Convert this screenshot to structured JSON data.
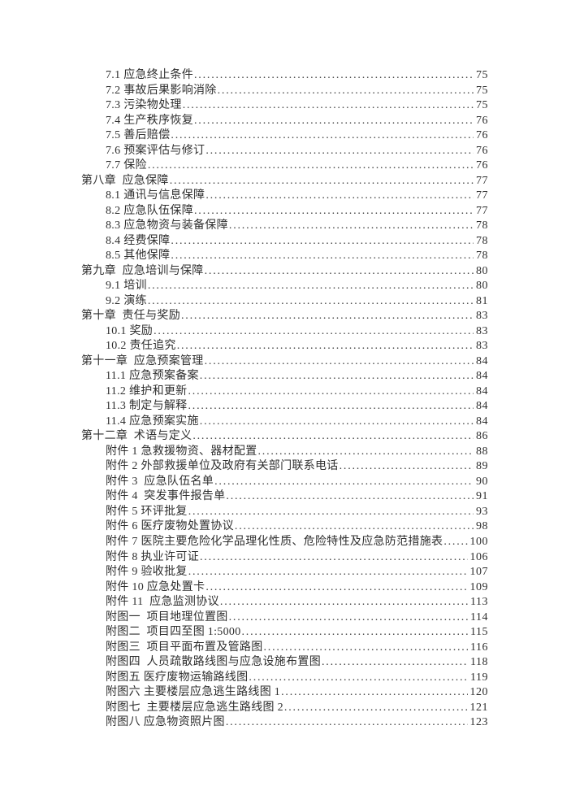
{
  "page": {
    "kind": "table-of-contents",
    "ink_color": "#2f2f2f",
    "background_color": "#ffffff"
  },
  "toc": {
    "entries": [
      {
        "level": "sub",
        "label": "7.1 应急终止条件",
        "page": "75"
      },
      {
        "level": "sub",
        "label": "7.2 事故后果影响消除",
        "page": "75"
      },
      {
        "level": "sub",
        "label": "7.3 污染物处理",
        "page": "75"
      },
      {
        "level": "sub",
        "label": "7.4 生产秩序恢复",
        "page": "76"
      },
      {
        "level": "sub",
        "label": "7.5 善后赔偿",
        "page": "76"
      },
      {
        "level": "sub",
        "label": "7.6 预案评估与修订",
        "page": "76"
      },
      {
        "level": "sub",
        "label": "7.7 保险",
        "page": "76"
      },
      {
        "level": "chapter",
        "label": "第八章  应急保障",
        "page": "77"
      },
      {
        "level": "sub",
        "label": "8.1 通讯与信息保障",
        "page": "77"
      },
      {
        "level": "sub",
        "label": "8.2 应急队伍保障",
        "page": "77"
      },
      {
        "level": "sub",
        "label": "8.3 应急物资与装备保障",
        "page": "78"
      },
      {
        "level": "sub",
        "label": "8.4 经费保障",
        "page": "78"
      },
      {
        "level": "sub",
        "label": "8.5 其他保障",
        "page": "78"
      },
      {
        "level": "chapter",
        "label": "第九章  应急培训与保障",
        "page": "80"
      },
      {
        "level": "sub",
        "label": "9.1 培训",
        "page": "80"
      },
      {
        "level": "sub",
        "label": "9.2 演练",
        "page": "81"
      },
      {
        "level": "chapter",
        "label": "第十章  责任与奖励",
        "page": "83"
      },
      {
        "level": "sub",
        "label": "10.1 奖励",
        "page": "83"
      },
      {
        "level": "sub",
        "label": "10.2 责任追究",
        "page": "83"
      },
      {
        "level": "chapter",
        "label": "第十一章  应急预案管理",
        "page": "84"
      },
      {
        "level": "sub",
        "label": "11.1 应急预案备案",
        "page": "84"
      },
      {
        "level": "sub",
        "label": "11.2 维护和更新",
        "page": "84"
      },
      {
        "level": "sub",
        "label": "11.3 制定与解释",
        "page": "84"
      },
      {
        "level": "sub",
        "label": "11.4 应急预案实施",
        "page": "84"
      },
      {
        "level": "chapter",
        "label": "第十二章  术语与定义",
        "page": "86"
      },
      {
        "level": "sub",
        "label": "附件 1 急救援物资、器材配置",
        "page": "88"
      },
      {
        "level": "sub",
        "label": "附件 2 外部救援单位及政府有关部门联系电话",
        "page": "89"
      },
      {
        "level": "sub",
        "label": "附件 3  应急队伍名单",
        "page": "90"
      },
      {
        "level": "sub",
        "label": "附件 4  突发事件报告单",
        "page": "91"
      },
      {
        "level": "sub",
        "label": "附件 5 环评批复",
        "page": "93"
      },
      {
        "level": "sub",
        "label": "附件 6 医疗废物处置协议",
        "page": "98"
      },
      {
        "level": "sub",
        "label": "附件 7 医院主要危险化学品理化性质、危险特性及应急防范措施表",
        "page": "100"
      },
      {
        "level": "sub",
        "label": "附件 8 执业许可证",
        "page": "106"
      },
      {
        "level": "sub",
        "label": "附件 9 验收批复",
        "page": "107"
      },
      {
        "level": "sub",
        "label": "附件 10 应急处置卡",
        "page": "109"
      },
      {
        "level": "sub",
        "label": "附件 11  应急监测协议",
        "page": "113"
      },
      {
        "level": "sub",
        "label": "附图一  项目地理位置图",
        "page": "114"
      },
      {
        "level": "sub",
        "label": "附图二  项目四至图 1:5000",
        "page": "115"
      },
      {
        "level": "sub",
        "label": "附图三  项目平面布置及管路图",
        "page": "116"
      },
      {
        "level": "sub",
        "label": "附图四  人员疏散路线图与应急设施布置图",
        "page": "118"
      },
      {
        "level": "sub",
        "label": "附图五 医疗废物运输路线图",
        "page": "119"
      },
      {
        "level": "sub",
        "label": "附图六 主要楼层应急逃生路线图 1",
        "page": "120"
      },
      {
        "level": "sub",
        "label": "附图七  主要楼层应急逃生路线图 2",
        "page": "121"
      },
      {
        "level": "sub",
        "label": "附图八 应急物资照片图",
        "page": "123"
      }
    ]
  }
}
